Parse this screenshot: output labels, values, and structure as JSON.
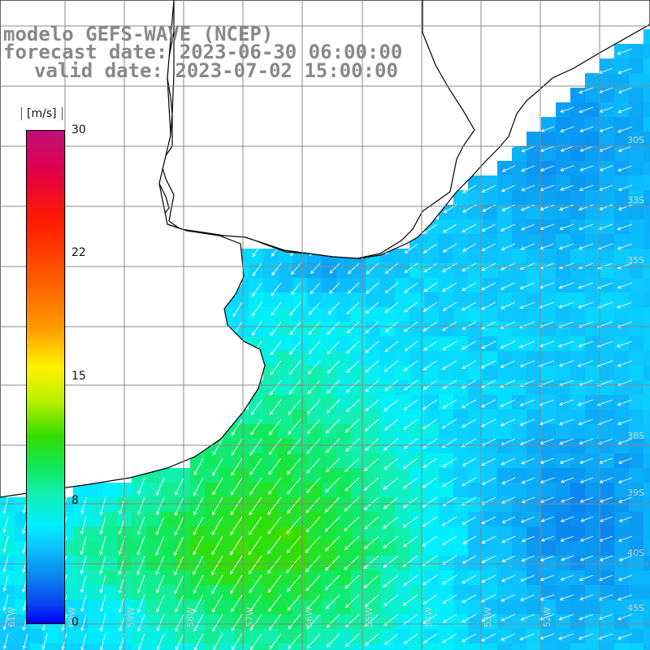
{
  "title": {
    "line1": "modelo GEFS-WAVE (NCEP)",
    "line2": "forecast date: 2023-06-30 06:00:00",
    "line3": "valid date: 2023-07-02 15:00:00"
  },
  "colorbar": {
    "units": "[m/s]",
    "min": 0,
    "max": 30,
    "ticks": [
      "30",
      "22",
      "15",
      "8",
      "0"
    ],
    "tick_values": [
      30,
      22,
      15,
      8,
      0
    ],
    "colors": [
      "#0000ff",
      "#0a8cf0",
      "#00f0ff",
      "#11f0b4",
      "#33dd00",
      "#b8f000",
      "#fff200",
      "#ff9a00",
      "#ff1a00",
      "#c0107a"
    ]
  },
  "grid_labels": {
    "right": [
      "30S",
      "33S",
      "35S",
      "38S",
      "39S",
      "40S",
      "45S"
    ],
    "bottom": [
      "61W",
      "60W",
      "59W",
      "58W",
      "57W",
      "56W",
      "55W",
      "54W",
      "53W",
      "52W"
    ]
  },
  "wind_field": {
    "variable": "wind speed",
    "units": "m/s",
    "range_min": 5,
    "range_max": 13,
    "prevailing_direction": "from northeast",
    "arrow_color": "#ffffff"
  },
  "colors": {
    "land": "#ffffff",
    "coastline": "#000000",
    "grid": "#888888",
    "title": "#888888"
  }
}
